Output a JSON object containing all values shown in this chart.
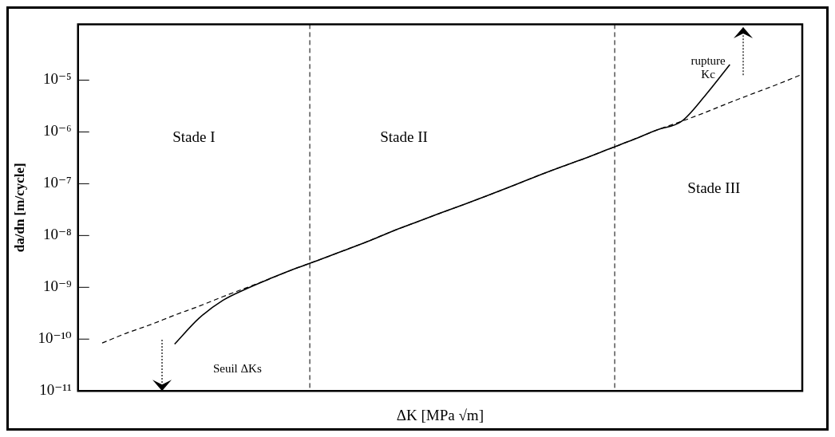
{
  "chart_data": {
    "type": "line",
    "xlabel": "ΔK [MPa √m]",
    "ylabel": "da/dn [m/cycle]",
    "categories": [
      null,
      null,
      null,
      null,
      null,
      null,
      null,
      null,
      null,
      null,
      null,
      null,
      null,
      null,
      null,
      null,
      null,
      null,
      null,
      null,
      null,
      null,
      null,
      null,
      null,
      null,
      null,
      null,
      null,
      null,
      null
    ],
    "ylim": [
      1e-11,
      0.00012
    ],
    "log": "y",
    "tick_labels": "y",
    "grid": false,
    "legend": false,
    "marker": "none",
    "yticks": [
      {
        "value": 1e-11,
        "label": "10⁻¹¹"
      },
      {
        "value": 1e-10,
        "label": "10⁻¹⁰"
      },
      {
        "value": 1e-09,
        "label": "10⁻⁹"
      },
      {
        "value": 1e-08,
        "label": "10⁻⁸"
      },
      {
        "value": 1e-07,
        "label": "10⁻⁷"
      },
      {
        "value": 1e-06,
        "label": "10⁻⁶"
      },
      {
        "value": 1e-05,
        "label": "10⁻⁵"
      }
    ],
    "series": [
      {
        "color": "#000000",
        "line_style": "solid",
        "values": [
          null,
          null,
          null,
          null,
          8e-11,
          2.5e-10,
          5.6e-10,
          9.5e-10,
          1.5e-09,
          2.3e-09,
          3.4e-09,
          5.1e-09,
          7.7e-09,
          1.2e-08,
          1.8e-08,
          2.7e-08,
          4e-08,
          6e-08,
          9.1e-08,
          1.4e-07,
          2.1e-07,
          3.1e-07,
          4.7e-07,
          7.1e-07,
          1.1e-06,
          1.6e-06,
          5.2e-06,
          2e-05,
          null,
          null,
          null
        ]
      },
      {
        "color": "#000000",
        "line_style": "dashed",
        "values": [
          null,
          8.4e-11,
          1.3e-10,
          1.9e-10,
          2.9e-10,
          4.3e-10,
          6.6e-10,
          9.9e-10,
          1.5e-09,
          2.3e-09,
          3.4e-09,
          5.1e-09,
          7.7e-09,
          1.2e-08,
          1.8e-08,
          2.7e-08,
          4e-08,
          6e-08,
          9.1e-08,
          1.4e-07,
          2.1e-07,
          3.1e-07,
          4.7e-07,
          7.1e-07,
          1.1e-06,
          1.6e-06,
          2.4e-06,
          3.7e-06,
          5.6e-06,
          8.4e-06,
          1.3e-05
        ]
      }
    ],
    "annotations": [
      "Stade I",
      "Stade II",
      "Stade III",
      "rupture\nKc",
      "Seuil ΔKs"
    ]
  }
}
